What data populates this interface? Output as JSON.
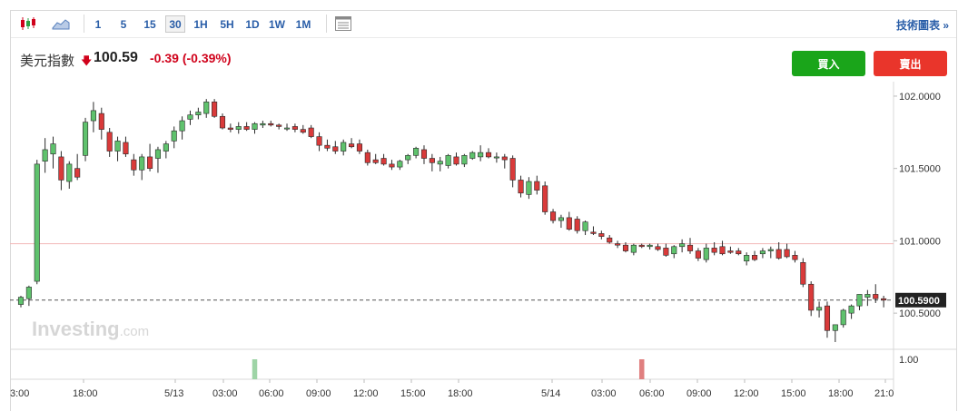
{
  "toolbar": {
    "timeframes": [
      {
        "label": "1"
      },
      {
        "label": "5"
      },
      {
        "label": "15"
      },
      {
        "label": "30",
        "active": true
      },
      {
        "label": "1H"
      },
      {
        "label": "5H"
      },
      {
        "label": "1D"
      },
      {
        "label": "1W"
      },
      {
        "label": "1M"
      }
    ],
    "tech_link": "技術圖表 »"
  },
  "instrument": {
    "name": "美元指數",
    "direction": "down",
    "price": "100.59",
    "change": "-0.39",
    "change_pct": "(-0.39%)"
  },
  "actions": {
    "buy_label": "買入",
    "sell_label": "賣出"
  },
  "colors": {
    "up": "#2ea043",
    "down": "#d0021b",
    "up_body": "#5fc26d",
    "down_body": "#d93a3a",
    "ref_line": "#f2b8b8"
  },
  "watermark": {
    "brand": "Investing",
    "suffix": ".com"
  },
  "chart_data": {
    "type": "candlestick",
    "price_axis_ticks": [
      "102.0000",
      "101.5000",
      "101.0000",
      "100.5000"
    ],
    "ylim": [
      100.25,
      102.1
    ],
    "current_price_label": "100.5900",
    "current_price": 100.59,
    "reference_price": 100.98,
    "volume_axis_label": "1.00",
    "x_labels": [
      "3:00",
      "18:00",
      "5/13",
      "03:00",
      "06:00",
      "09:00",
      "12:00",
      "15:00",
      "18:00",
      "5/14",
      "03:00",
      "06:00",
      "09:00",
      "12:00",
      "15:00",
      "18:00",
      "21:0"
    ],
    "candles": [
      [
        100.56,
        100.62,
        100.54,
        100.61
      ],
      [
        100.6,
        100.69,
        100.55,
        100.68
      ],
      [
        100.72,
        101.56,
        100.7,
        101.53
      ],
      [
        101.55,
        101.71,
        101.47,
        101.63
      ],
      [
        101.6,
        101.72,
        101.5,
        101.67
      ],
      [
        101.58,
        101.62,
        101.35,
        101.42
      ],
      [
        101.41,
        101.55,
        101.36,
        101.53
      ],
      [
        101.5,
        101.6,
        101.42,
        101.44
      ],
      [
        101.59,
        101.85,
        101.55,
        101.82
      ],
      [
        101.83,
        101.96,
        101.75,
        101.9
      ],
      [
        101.88,
        101.92,
        101.7,
        101.77
      ],
      [
        101.75,
        101.78,
        101.58,
        101.62
      ],
      [
        101.62,
        101.72,
        101.55,
        101.69
      ],
      [
        101.68,
        101.72,
        101.58,
        101.6
      ],
      [
        101.56,
        101.6,
        101.45,
        101.49
      ],
      [
        101.49,
        101.6,
        101.42,
        101.58
      ],
      [
        101.58,
        101.67,
        101.48,
        101.5
      ],
      [
        101.57,
        101.65,
        101.47,
        101.63
      ],
      [
        101.62,
        101.69,
        101.57,
        101.67
      ],
      [
        101.69,
        101.79,
        101.64,
        101.76
      ],
      [
        101.76,
        101.86,
        101.7,
        101.83
      ],
      [
        101.84,
        101.9,
        101.8,
        101.87
      ],
      [
        101.87,
        101.92,
        101.84,
        101.89
      ],
      [
        101.88,
        101.98,
        101.85,
        101.96
      ],
      [
        101.96,
        101.98,
        101.85,
        101.86
      ],
      [
        101.86,
        101.88,
        101.77,
        101.78
      ],
      [
        101.78,
        101.81,
        101.75,
        101.77
      ],
      [
        101.77,
        101.82,
        101.74,
        101.79
      ],
      [
        101.79,
        101.82,
        101.76,
        101.77
      ],
      [
        101.77,
        101.82,
        101.74,
        101.81
      ],
      [
        101.8,
        101.83,
        101.78,
        101.81
      ],
      [
        101.81,
        101.83,
        101.79,
        101.8
      ],
      [
        101.8,
        101.81,
        101.77,
        101.79
      ],
      [
        101.78,
        101.81,
        101.76,
        101.78
      ],
      [
        101.79,
        101.81,
        101.75,
        101.77
      ],
      [
        101.77,
        101.8,
        101.74,
        101.75
      ],
      [
        101.78,
        101.8,
        101.71,
        101.72
      ],
      [
        101.72,
        101.75,
        101.62,
        101.66
      ],
      [
        101.66,
        101.7,
        101.62,
        101.64
      ],
      [
        101.65,
        101.69,
        101.6,
        101.62
      ],
      [
        101.62,
        101.7,
        101.59,
        101.68
      ],
      [
        101.67,
        101.71,
        101.64,
        101.65
      ],
      [
        101.67,
        101.7,
        101.6,
        101.62
      ],
      [
        101.61,
        101.63,
        101.52,
        101.54
      ],
      [
        101.56,
        101.6,
        101.53,
        101.54
      ],
      [
        101.57,
        101.6,
        101.52,
        101.53
      ],
      [
        101.53,
        101.56,
        101.49,
        101.51
      ],
      [
        101.51,
        101.56,
        101.49,
        101.55
      ],
      [
        101.56,
        101.6,
        101.53,
        101.59
      ],
      [
        101.59,
        101.65,
        101.57,
        101.64
      ],
      [
        101.63,
        101.66,
        101.53,
        101.57
      ],
      [
        101.57,
        101.6,
        101.48,
        101.54
      ],
      [
        101.53,
        101.58,
        101.48,
        101.55
      ],
      [
        101.52,
        101.6,
        101.5,
        101.59
      ],
      [
        101.58,
        101.61,
        101.52,
        101.53
      ],
      [
        101.53,
        101.6,
        101.51,
        101.59
      ],
      [
        101.57,
        101.62,
        101.56,
        101.61
      ],
      [
        101.58,
        101.66,
        101.55,
        101.61
      ],
      [
        101.61,
        101.64,
        101.57,
        101.58
      ],
      [
        101.58,
        101.61,
        101.54,
        101.58
      ],
      [
        101.58,
        101.6,
        101.5,
        101.56
      ],
      [
        101.57,
        101.59,
        101.37,
        101.42
      ],
      [
        101.42,
        101.45,
        101.3,
        101.33
      ],
      [
        101.32,
        101.44,
        101.29,
        101.41
      ],
      [
        101.41,
        101.45,
        101.32,
        101.35
      ],
      [
        101.38,
        101.41,
        101.18,
        101.2
      ],
      [
        101.2,
        101.22,
        101.12,
        101.14
      ],
      [
        101.14,
        101.18,
        101.09,
        101.16
      ],
      [
        101.16,
        101.2,
        101.07,
        101.08
      ],
      [
        101.15,
        101.17,
        101.05,
        101.07
      ],
      [
        101.07,
        101.14,
        101.04,
        101.13
      ],
      [
        101.06,
        101.1,
        101.04,
        101.05
      ],
      [
        101.05,
        101.07,
        101.01,
        101.03
      ],
      [
        101.02,
        101.04,
        100.98,
        100.99
      ],
      [
        100.98,
        101.0,
        100.95,
        100.97
      ],
      [
        100.97,
        100.99,
        100.92,
        100.93
      ],
      [
        100.92,
        100.98,
        100.9,
        100.97
      ],
      [
        100.97,
        100.98,
        100.95,
        100.96
      ],
      [
        100.96,
        100.98,
        100.94,
        100.97
      ],
      [
        100.96,
        100.98,
        100.93,
        100.94
      ],
      [
        100.95,
        100.98,
        100.89,
        100.9
      ],
      [
        100.91,
        100.97,
        100.88,
        100.96
      ],
      [
        100.96,
        101.01,
        100.92,
        100.98
      ],
      [
        100.97,
        101.02,
        100.91,
        100.93
      ],
      [
        100.93,
        100.95,
        100.86,
        100.88
      ],
      [
        100.87,
        100.98,
        100.85,
        100.95
      ],
      [
        100.95,
        100.99,
        100.9,
        100.92
      ],
      [
        100.96,
        101.0,
        100.9,
        100.91
      ],
      [
        100.93,
        100.96,
        100.91,
        100.92
      ],
      [
        100.93,
        100.95,
        100.9,
        100.91
      ],
      [
        100.86,
        100.92,
        100.83,
        100.9
      ],
      [
        100.9,
        100.93,
        100.86,
        100.87
      ],
      [
        100.91,
        100.95,
        100.88,
        100.93
      ],
      [
        100.93,
        100.96,
        100.88,
        100.94
      ],
      [
        100.94,
        100.99,
        100.87,
        100.88
      ],
      [
        100.94,
        100.98,
        100.88,
        100.89
      ],
      [
        100.9,
        100.93,
        100.85,
        100.87
      ],
      [
        100.85,
        100.88,
        100.68,
        100.7
      ],
      [
        100.7,
        100.72,
        100.48,
        100.52
      ],
      [
        100.52,
        100.58,
        100.47,
        100.54
      ],
      [
        100.55,
        100.58,
        100.33,
        100.38
      ],
      [
        100.38,
        100.42,
        100.3,
        100.42
      ],
      [
        100.42,
        100.53,
        100.4,
        100.52
      ],
      [
        100.5,
        100.56,
        100.46,
        100.55
      ],
      [
        100.55,
        100.62,
        100.52,
        100.63
      ],
      [
        100.61,
        100.66,
        100.55,
        100.63
      ],
      [
        100.63,
        100.7,
        100.57,
        100.6
      ],
      [
        100.6,
        100.62,
        100.54,
        100.59
      ]
    ],
    "volume_bars": [
      {
        "index": 29,
        "color": "up"
      },
      {
        "index": 77,
        "color": "down"
      }
    ]
  }
}
